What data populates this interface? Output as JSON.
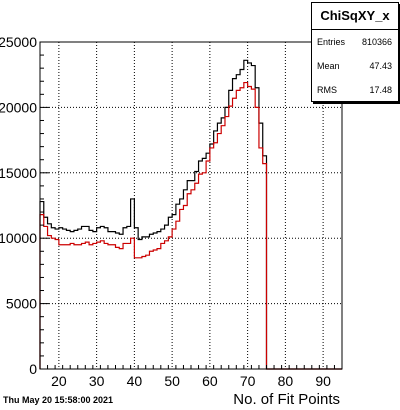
{
  "stats": {
    "title": "ChiSqXY_x",
    "rows": [
      {
        "label": "Entries",
        "value": "810366"
      },
      {
        "label": "Mean",
        "value": "47.43"
      },
      {
        "label": "RMS",
        "value": "17.48"
      }
    ]
  },
  "timestamp": "Thu May 20 15:58:00 2021",
  "chart_data": {
    "type": "line",
    "title": "",
    "xlabel": "No. of Fit Points",
    "ylabel": "",
    "xlim": [
      15,
      95
    ],
    "ylim": [
      0,
      25000
    ],
    "xticks": [
      20,
      30,
      40,
      50,
      60,
      70,
      80,
      90
    ],
    "yticks": [
      0,
      5000,
      10000,
      15000,
      20000,
      25000
    ],
    "ytick_labels": [
      "0",
      "5000",
      "10000",
      "15000",
      "20000",
      "25000"
    ],
    "grid": true,
    "bin_width": 1,
    "series": [
      {
        "color": "#000000",
        "bin_edges_start": 15,
        "values": [
          12800,
          11600,
          11100,
          10800,
          10700,
          10800,
          10700,
          10600,
          10500,
          10600,
          10700,
          10900,
          10900,
          10600,
          10500,
          10800,
          10900,
          10800,
          10500,
          10500,
          10400,
          10300,
          10800,
          10900,
          13000,
          10800,
          9900,
          10100,
          10100,
          10300,
          10400,
          10500,
          10700,
          11000,
          11600,
          11800,
          12600,
          13000,
          13700,
          14400,
          14400,
          15100,
          15900,
          16100,
          16500,
          17200,
          18200,
          18800,
          19200,
          20000,
          21300,
          22200,
          22500,
          22900,
          23600,
          23400,
          23200,
          21500,
          18800,
          16300,
          0,
          0,
          0,
          0,
          0,
          0,
          0,
          0,
          0,
          0,
          0,
          0,
          0,
          0,
          0,
          0,
          0,
          0,
          0,
          0
        ]
      },
      {
        "color": "#cc0000",
        "bin_edges_start": 15,
        "values": [
          11800,
          10900,
          10200,
          10000,
          9900,
          9500,
          9500,
          9500,
          9600,
          9500,
          9500,
          9600,
          9700,
          9500,
          9600,
          9700,
          9800,
          9600,
          9500,
          9500,
          9300,
          9200,
          9600,
          9600,
          10000,
          8500,
          8500,
          8600,
          8700,
          9000,
          9100,
          9200,
          9600,
          9800,
          10100,
          10700,
          11300,
          12200,
          12500,
          13400,
          13700,
          14200,
          14900,
          15000,
          15900,
          16900,
          17300,
          18000,
          18600,
          19300,
          20100,
          20700,
          21300,
          21500,
          21900,
          21600,
          21400,
          20000,
          16900,
          15700,
          0,
          0,
          0,
          0,
          0,
          0,
          0,
          0,
          0,
          0,
          0,
          0,
          0,
          0,
          0,
          0,
          0,
          0,
          0,
          0
        ]
      }
    ]
  }
}
